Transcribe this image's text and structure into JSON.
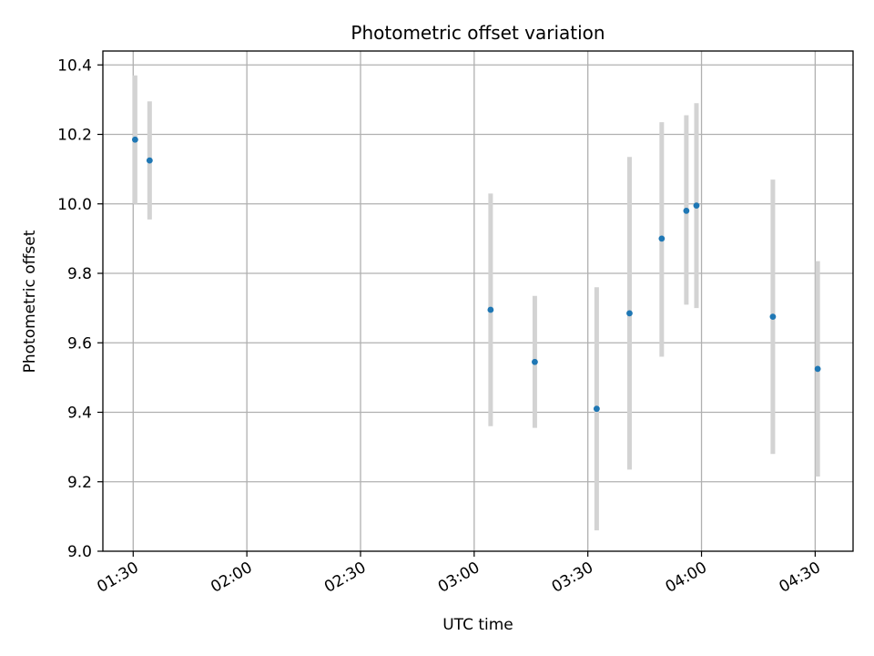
{
  "chart_data": {
    "type": "scatter",
    "title": "Photometric offset variation",
    "xlabel": "UTC time",
    "ylabel": "Photometric offset",
    "x_unit": "UTC time (HH:MM)",
    "xlim": [
      "01:22",
      "04:40"
    ],
    "ylim": [
      9.0,
      10.44
    ],
    "x_ticks": [
      "01:30",
      "02:00",
      "02:30",
      "03:00",
      "03:30",
      "04:00",
      "04:30"
    ],
    "y_ticks": [
      9.0,
      9.2,
      9.4,
      9.6,
      9.8,
      10.0,
      10.2,
      10.4
    ],
    "y_tick_labels": [
      "9.0",
      "9.2",
      "9.4",
      "9.6",
      "9.8",
      "10.0",
      "10.2",
      "10.4"
    ],
    "grid": true,
    "marker_color": "#1f77b4",
    "errorbar_color": "#d3d3d3",
    "points": [
      {
        "x": "01:30:30",
        "y": 10.185,
        "ylow": 10.0,
        "yhigh": 10.37
      },
      {
        "x": "01:34:20",
        "y": 10.125,
        "ylow": 9.955,
        "yhigh": 10.295
      },
      {
        "x": "03:04:20",
        "y": 9.695,
        "ylow": 9.36,
        "yhigh": 10.03
      },
      {
        "x": "03:16:00",
        "y": 9.545,
        "ylow": 9.355,
        "yhigh": 9.735
      },
      {
        "x": "03:32:20",
        "y": 9.41,
        "ylow": 9.06,
        "yhigh": 9.76
      },
      {
        "x": "03:41:00",
        "y": 9.685,
        "ylow": 9.235,
        "yhigh": 10.135
      },
      {
        "x": "03:49:30",
        "y": 9.9,
        "ylow": 9.56,
        "yhigh": 10.235
      },
      {
        "x": "03:56:00",
        "y": 9.98,
        "ylow": 9.71,
        "yhigh": 10.255
      },
      {
        "x": "03:58:40",
        "y": 9.995,
        "ylow": 9.7,
        "yhigh": 10.29
      },
      {
        "x": "04:18:50",
        "y": 9.675,
        "ylow": 9.28,
        "yhigh": 10.07
      },
      {
        "x": "04:30:40",
        "y": 9.525,
        "ylow": 9.215,
        "yhigh": 9.835
      }
    ]
  }
}
